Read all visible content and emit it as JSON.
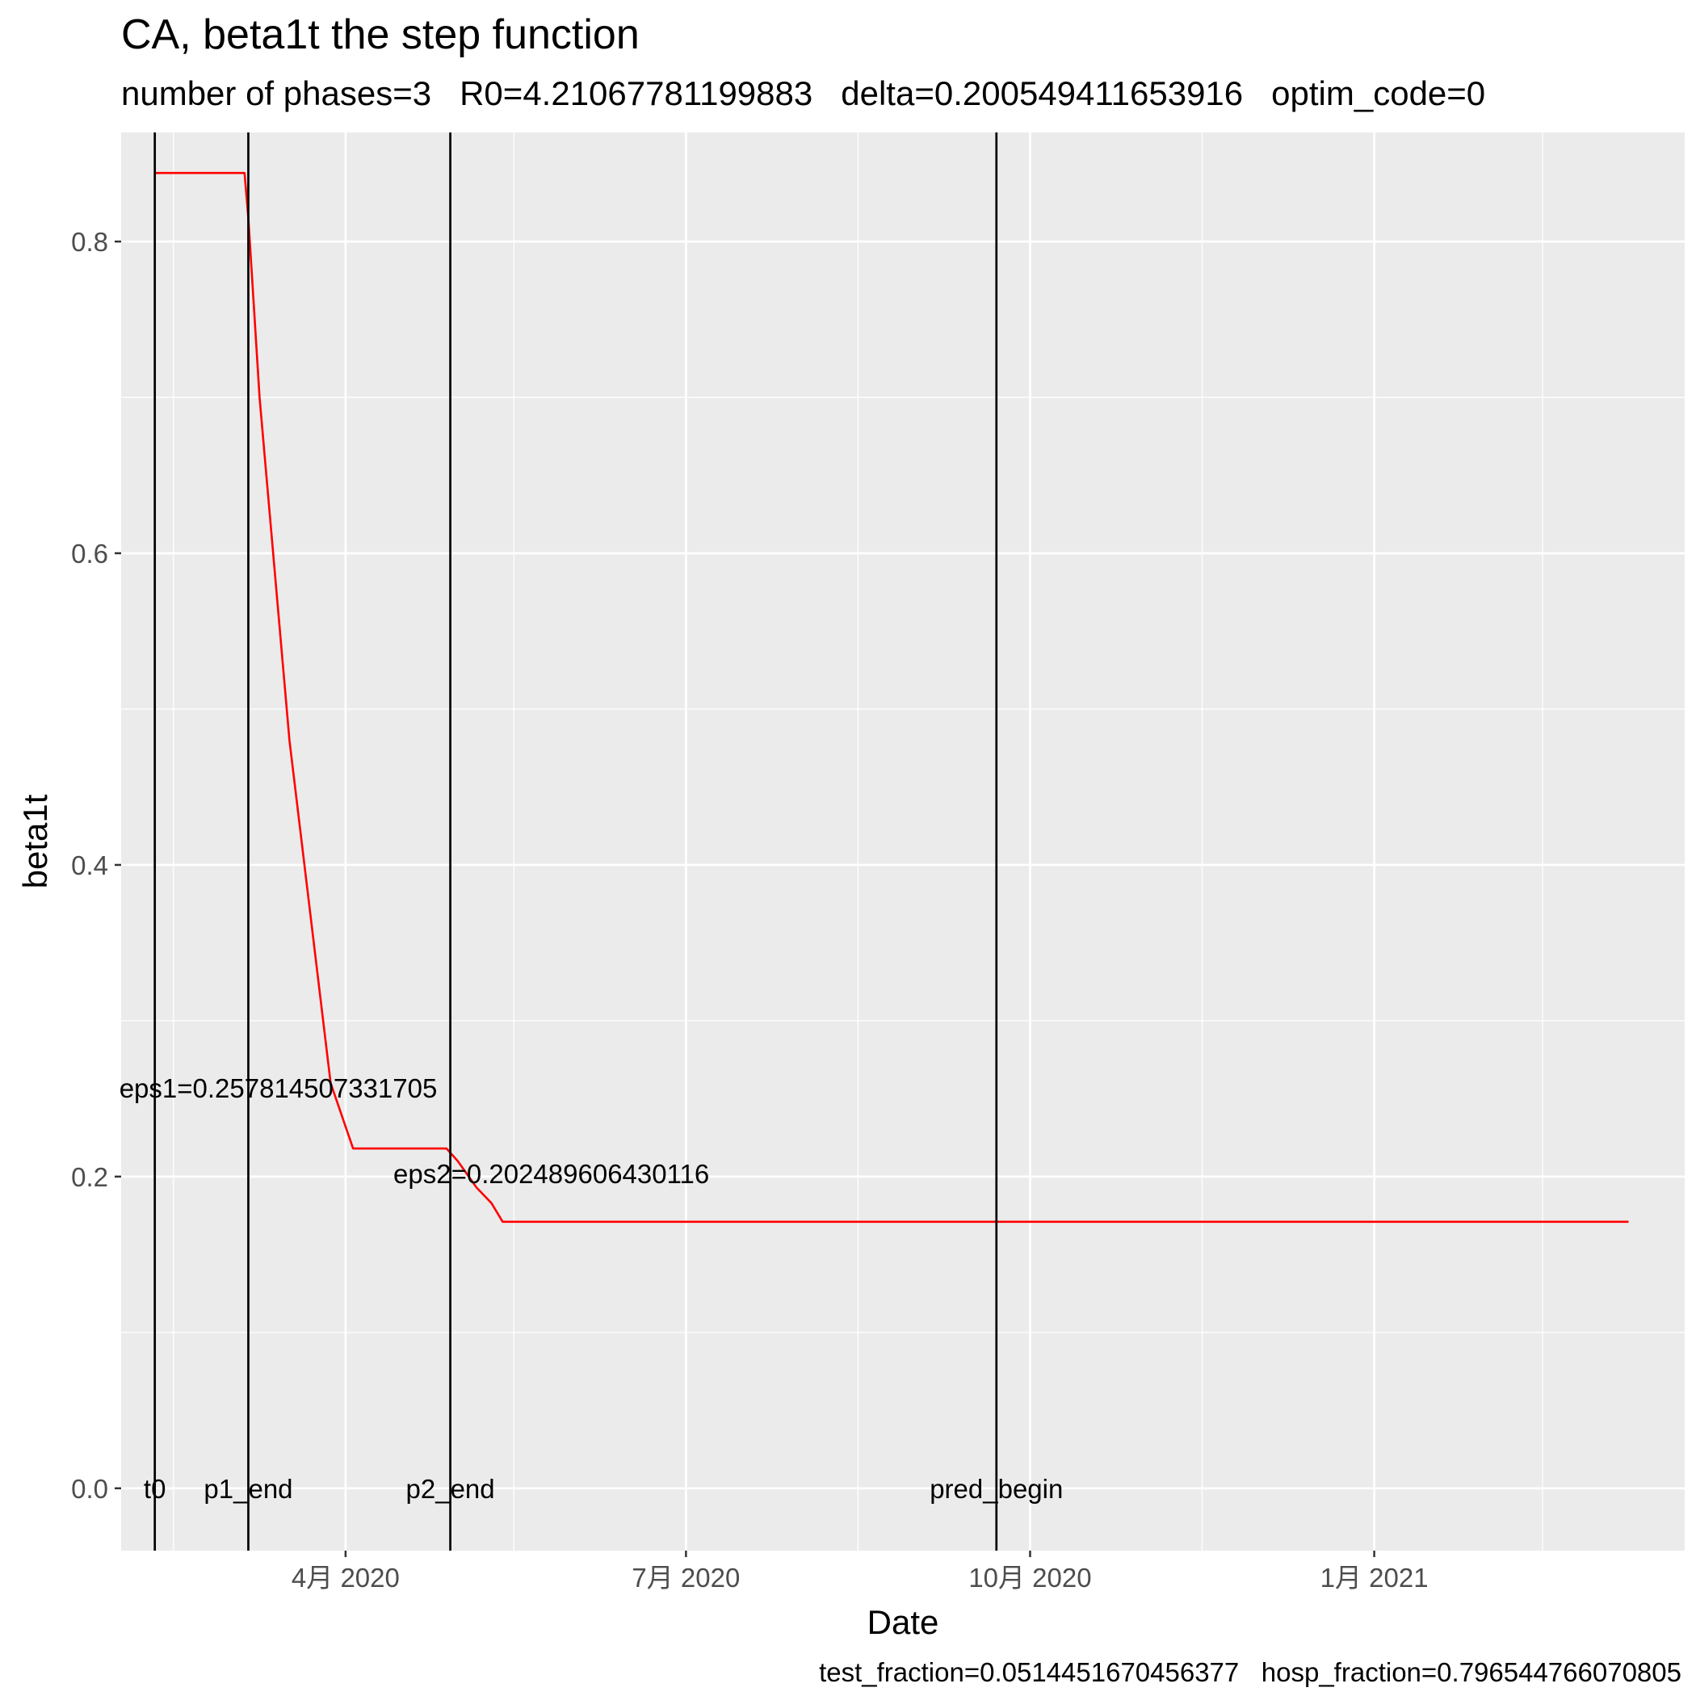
{
  "chart_data": {
    "type": "line",
    "title": "CA, beta1t the step function",
    "subtitle": "number of phases=3   R0=4.21067781199883   delta=0.200549411653916   optim_code=0",
    "caption": "test_fraction=0.0514451670456377   hosp_fraction=0.796544766070805",
    "xlabel": "Date",
    "ylabel": "beta1t",
    "x_type": "date",
    "xlim": [
      "2020-02-01",
      "2021-03-25"
    ],
    "ylim": [
      -0.04,
      0.87
    ],
    "x_ticks": [
      {
        "date": "2020-04-01",
        "label": "4月 2020"
      },
      {
        "date": "2020-07-01",
        "label": "7月 2020"
      },
      {
        "date": "2020-10-01",
        "label": "10月 2020"
      },
      {
        "date": "2021-01-01",
        "label": "1月 2021"
      }
    ],
    "x_minor_ticks": [
      "2020-02-15",
      "2020-05-16",
      "2020-08-16",
      "2020-11-16",
      "2021-02-15"
    ],
    "y_ticks": [
      0.0,
      0.2,
      0.4,
      0.6,
      0.8
    ],
    "y_tick_labels": [
      "0.0",
      "0.2",
      "0.4",
      "0.6",
      "0.8"
    ],
    "y_minor_ticks": [
      0.1,
      0.3,
      0.5,
      0.7
    ],
    "grid": true,
    "series": [
      {
        "color": "#ff0000",
        "points": [
          {
            "x": "2020-02-10",
            "y": 0.844
          },
          {
            "x": "2020-03-05",
            "y": 0.844
          },
          {
            "x": "2020-03-06",
            "y": 0.815
          },
          {
            "x": "2020-03-09",
            "y": 0.7
          },
          {
            "x": "2020-03-17",
            "y": 0.48
          },
          {
            "x": "2020-03-28",
            "y": 0.26
          },
          {
            "x": "2020-04-03",
            "y": 0.218
          },
          {
            "x": "2020-04-28",
            "y": 0.218
          },
          {
            "x": "2020-05-01",
            "y": 0.21
          },
          {
            "x": "2020-05-06",
            "y": 0.193
          },
          {
            "x": "2020-05-10",
            "y": 0.183
          },
          {
            "x": "2020-05-13",
            "y": 0.171
          },
          {
            "x": "2021-03-10",
            "y": 0.171
          }
        ]
      }
    ],
    "vlines": [
      {
        "date": "2020-02-10",
        "label": "t0"
      },
      {
        "date": "2020-03-06",
        "label": "p1_end"
      },
      {
        "date": "2020-04-29",
        "label": "p2_end"
      },
      {
        "date": "2020-09-22",
        "label": "pred_begin"
      }
    ],
    "annotations": [
      {
        "text": "eps1=0.257814507331705",
        "x": "2020-03-14",
        "y": 0.257
      },
      {
        "text": "eps2=0.202489606430116",
        "x": "2020-05-26",
        "y": 0.202
      }
    ]
  }
}
